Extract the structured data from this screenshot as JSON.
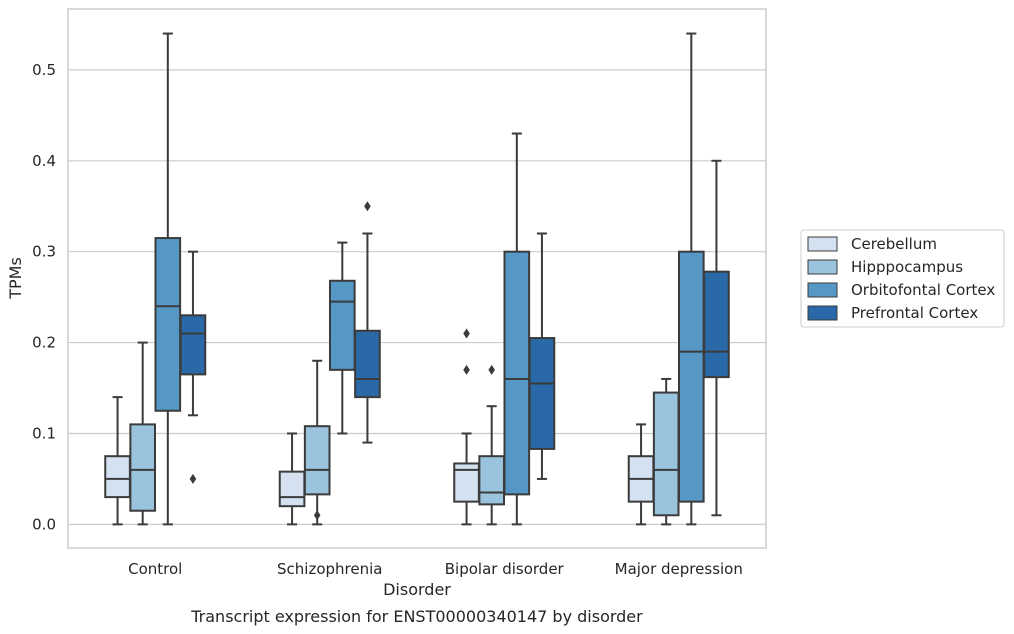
{
  "chart_data": {
    "type": "box",
    "title": "",
    "caption": "Transcript expression for ENST00000340147 by disorder",
    "xlabel": "Disorder",
    "ylabel": "TPMs",
    "ylim": [
      -0.026,
      0.567
    ],
    "yticks": [
      0.0,
      0.1,
      0.2,
      0.3,
      0.4,
      0.5
    ],
    "ytick_labels": [
      "0.0",
      "0.1",
      "0.2",
      "0.3",
      "0.4",
      "0.5"
    ],
    "grid": "horizontal",
    "legend_position": "right",
    "categories": [
      "Control",
      "Schizophrenia",
      "Bipolar disorder",
      "Major depression"
    ],
    "series": [
      {
        "name": "Cerebellum",
        "color": "#d3e1f0",
        "boxes": [
          {
            "q1": 0.03,
            "median": 0.05,
            "q3": 0.075,
            "whislo": 0.0,
            "whishi": 0.14,
            "fliers": []
          },
          {
            "q1": 0.02,
            "median": 0.03,
            "q3": 0.058,
            "whislo": 0.0,
            "whishi": 0.1,
            "fliers": []
          },
          {
            "q1": 0.025,
            "median": 0.06,
            "q3": 0.067,
            "whislo": 0.0,
            "whishi": 0.1,
            "fliers": [
              0.17,
              0.21
            ]
          },
          {
            "q1": 0.025,
            "median": 0.05,
            "q3": 0.075,
            "whislo": 0.0,
            "whishi": 0.11,
            "fliers": []
          }
        ]
      },
      {
        "name": "Hipppocampus",
        "color": "#9ac3dd",
        "boxes": [
          {
            "q1": 0.015,
            "median": 0.06,
            "q3": 0.11,
            "whislo": 0.0,
            "whishi": 0.2,
            "fliers": []
          },
          {
            "q1": 0.033,
            "median": 0.06,
            "q3": 0.108,
            "whislo": 0.0,
            "whishi": 0.18,
            "fliers": [
              0.01
            ]
          },
          {
            "q1": 0.022,
            "median": 0.035,
            "q3": 0.075,
            "whislo": 0.0,
            "whishi": 0.13,
            "fliers": [
              0.17
            ]
          },
          {
            "q1": 0.01,
            "median": 0.06,
            "q3": 0.145,
            "whislo": 0.0,
            "whishi": 0.16,
            "fliers": []
          }
        ]
      },
      {
        "name": "Orbitofontal Cortex",
        "color": "#5597c5",
        "boxes": [
          {
            "q1": 0.125,
            "median": 0.24,
            "q3": 0.315,
            "whislo": 0.0,
            "whishi": 0.54,
            "fliers": []
          },
          {
            "q1": 0.17,
            "median": 0.245,
            "q3": 0.268,
            "whislo": 0.1,
            "whishi": 0.31,
            "fliers": []
          },
          {
            "q1": 0.033,
            "median": 0.16,
            "q3": 0.3,
            "whislo": 0.0,
            "whishi": 0.43,
            "fliers": []
          },
          {
            "q1": 0.025,
            "median": 0.19,
            "q3": 0.3,
            "whislo": 0.0,
            "whishi": 0.54,
            "fliers": []
          }
        ]
      },
      {
        "name": "Prefrontal Cortex",
        "color": "#2a69a7",
        "boxes": [
          {
            "q1": 0.165,
            "median": 0.21,
            "q3": 0.23,
            "whislo": 0.12,
            "whishi": 0.3,
            "fliers": [
              0.05
            ]
          },
          {
            "q1": 0.14,
            "median": 0.16,
            "q3": 0.213,
            "whislo": 0.09,
            "whishi": 0.32,
            "fliers": [
              0.35
            ]
          },
          {
            "q1": 0.083,
            "median": 0.155,
            "q3": 0.205,
            "whislo": 0.05,
            "whishi": 0.32,
            "fliers": []
          },
          {
            "q1": 0.162,
            "median": 0.19,
            "q3": 0.278,
            "whislo": 0.01,
            "whishi": 0.4,
            "fliers": []
          }
        ]
      }
    ]
  },
  "colors": {
    "frame": "#cccccc",
    "grid": "#cccccc",
    "line": "#3b3b3b",
    "text": "#262626",
    "background": "#ffffff"
  }
}
